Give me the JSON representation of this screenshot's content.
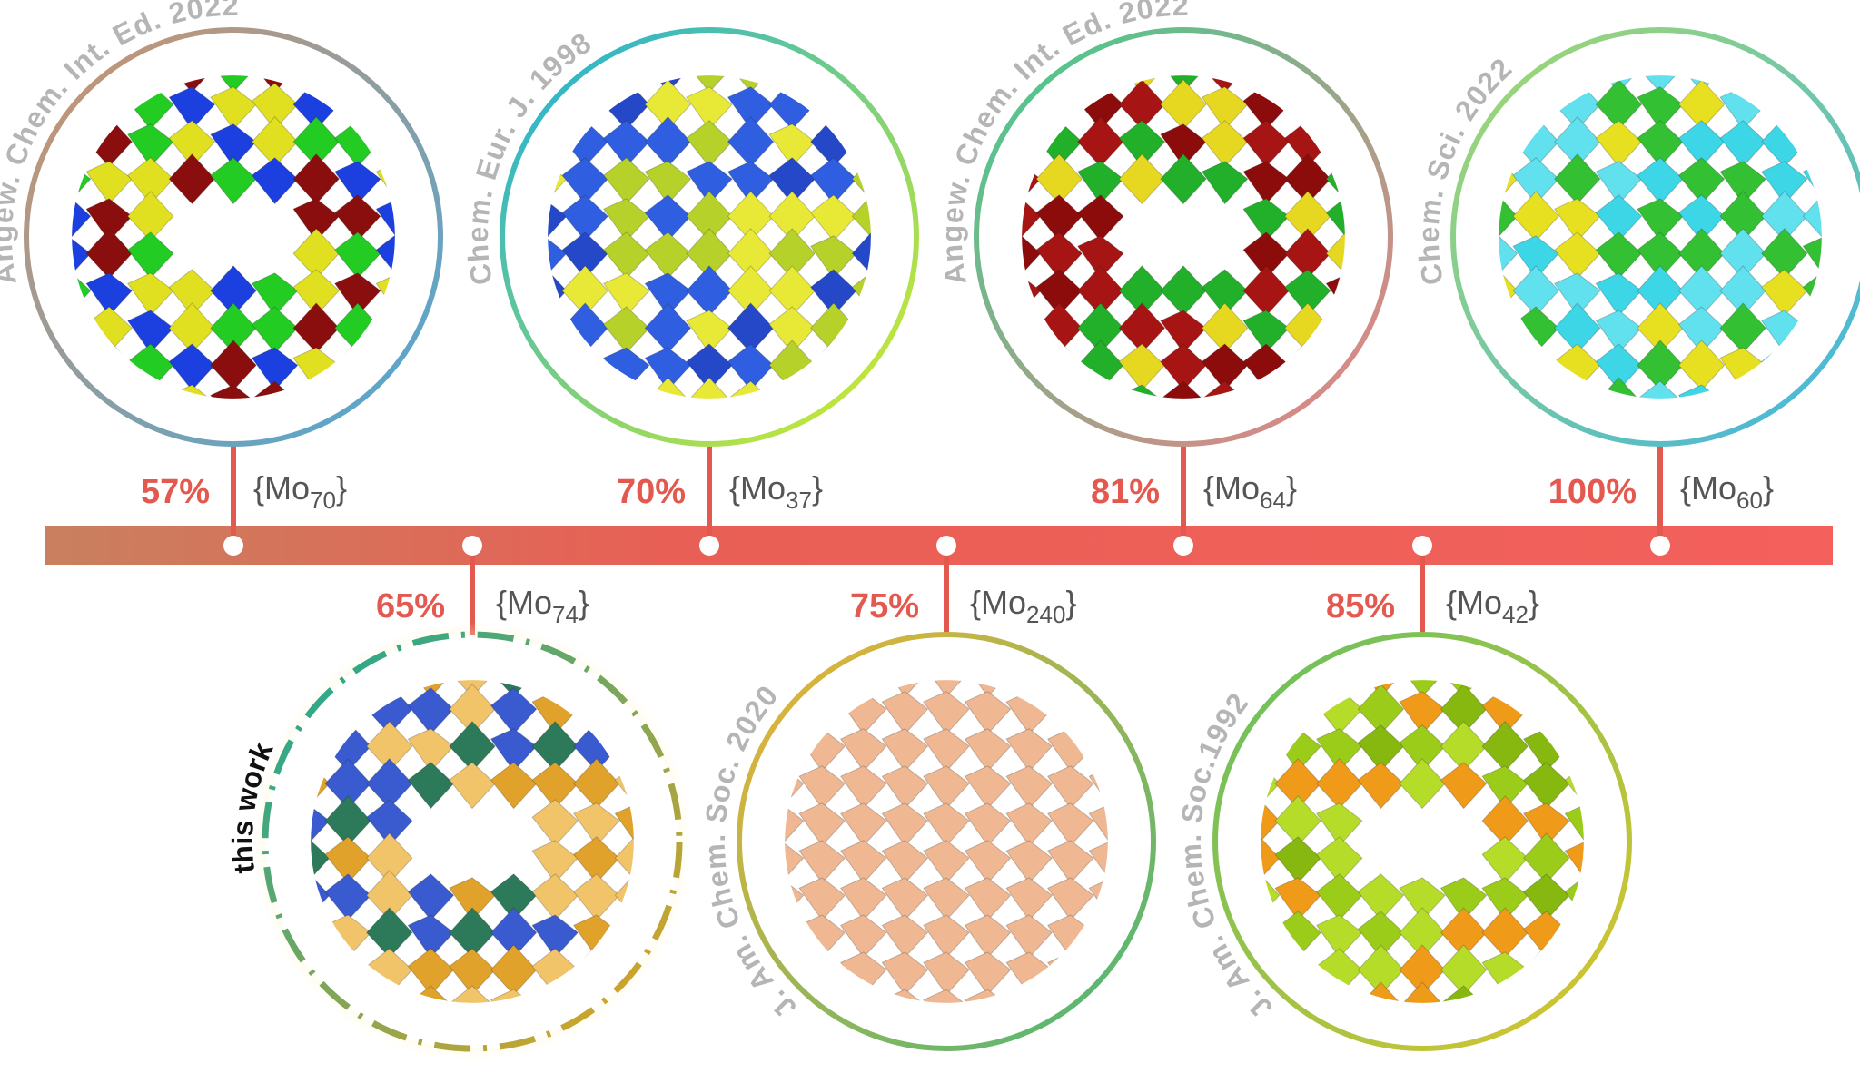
{
  "top_items": [
    {
      "label": "Angew. Chem. Int. Ed. 2022",
      "percent": "57%",
      "formula": {
        "prefix": "{Mo",
        "subscript": "70",
        "suffix": "}"
      }
    },
    {
      "label": "Chem. Eur. J. 1998",
      "percent": "70%",
      "formula": {
        "prefix": "{Mo",
        "subscript": "37",
        "suffix": "}"
      }
    },
    {
      "label": "Angew. Chem. Int. Ed. 2022",
      "percent": "81%",
      "formula": {
        "prefix": "{Mo",
        "subscript": "64",
        "suffix": "}"
      }
    },
    {
      "label": "Chem. Sci. 2022",
      "percent": "100%",
      "formula": {
        "prefix": "{Mo",
        "subscript": "60",
        "suffix": "}"
      }
    }
  ],
  "bottom_items": [
    {
      "label": "this work",
      "percent": "65%",
      "formula": {
        "prefix": "{Mo",
        "subscript": "74",
        "suffix": "}"
      }
    },
    {
      "label": "J. Am. Chem. Soc. 2020",
      "percent": "75%",
      "formula": {
        "prefix": "{Mo",
        "subscript": "240",
        "suffix": "}"
      }
    },
    {
      "label": "J. Am. Chem. Soc.1992",
      "percent": "85%",
      "formula": {
        "prefix": "{Mo",
        "subscript": "42",
        "suffix": "}"
      }
    }
  ]
}
